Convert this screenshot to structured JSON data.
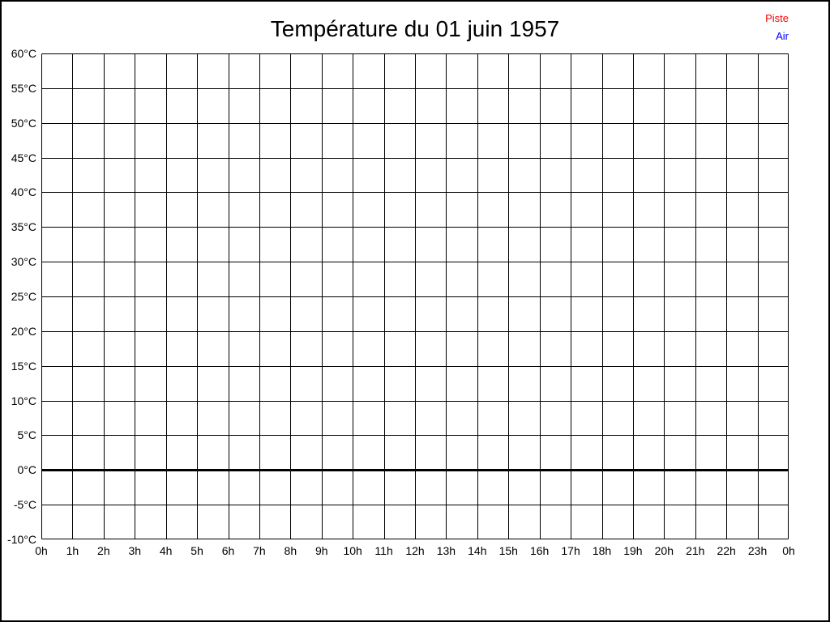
{
  "page": {
    "background": "#ffffff",
    "border_color": "#000000"
  },
  "chart_data": {
    "type": "line",
    "title": "Température du 01 juin 1957",
    "xlabel": "",
    "ylabel": "",
    "ylim": [
      -10,
      60
    ],
    "y_step": 5,
    "y_tick_labels": [
      "60°C",
      "55°C",
      "50°C",
      "45°C",
      "40°C",
      "35°C",
      "30°C",
      "25°C",
      "20°C",
      "15°C",
      "10°C",
      "5°C",
      "0°C",
      "-5°C",
      "-10°C"
    ],
    "x_tick_labels": [
      "0h",
      "1h",
      "2h",
      "3h",
      "4h",
      "5h",
      "6h",
      "7h",
      "8h",
      "9h",
      "10h",
      "11h",
      "12h",
      "13h",
      "14h",
      "15h",
      "16h",
      "17h",
      "18h",
      "19h",
      "20h",
      "21h",
      "22h",
      "23h",
      "0h"
    ],
    "grid": true,
    "grid_color": "#000000",
    "zero_line": {
      "value": 0,
      "color": "#000000",
      "width": 3
    },
    "legend": {
      "position": "top-right",
      "entries": [
        {
          "label": "Piste",
          "color": "#ff0000"
        },
        {
          "label": "Air",
          "color": "#0000ff"
        }
      ]
    },
    "series": [
      {
        "name": "Piste",
        "color": "#ff0000",
        "values": []
      },
      {
        "name": "Air",
        "color": "#0000ff",
        "values": []
      }
    ]
  }
}
